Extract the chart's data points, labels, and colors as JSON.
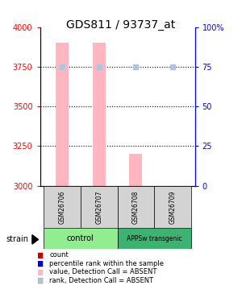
{
  "title": "GDS811 / 93737_at",
  "samples": [
    "GSM26706",
    "GSM26707",
    "GSM26708",
    "GSM26709"
  ],
  "bar_values": [
    3900,
    3900,
    3200,
    3000
  ],
  "bar_base": 3000,
  "rank_values": [
    75,
    75,
    75,
    75
  ],
  "ylim_left": [
    3000,
    4000
  ],
  "ylim_right": [
    0,
    100
  ],
  "yticks_left": [
    3000,
    3250,
    3500,
    3750,
    4000
  ],
  "yticks_right": [
    0,
    25,
    50,
    75,
    100
  ],
  "right_tick_labels": [
    "0",
    "25",
    "50",
    "75",
    "100%"
  ],
  "bar_color": "#ffb6c1",
  "rank_color": "#b0c4de",
  "legend": [
    {
      "label": "count",
      "color": "#cc0000"
    },
    {
      "label": "percentile rank within the sample",
      "color": "#0000cc"
    },
    {
      "label": "value, Detection Call = ABSENT",
      "color": "#ffb6c1"
    },
    {
      "label": "rank, Detection Call = ABSENT",
      "color": "#b0c4de"
    }
  ],
  "group_row_color": "#d3d3d3",
  "group1_color": "#90ee90",
  "group2_color": "#3cb371",
  "group1_name": "control",
  "group2_name": "APPSw transgenic",
  "strain_label": "strain",
  "title_fontsize": 10,
  "tick_fontsize": 7,
  "label_fontsize": 6,
  "legend_fontsize": 6
}
